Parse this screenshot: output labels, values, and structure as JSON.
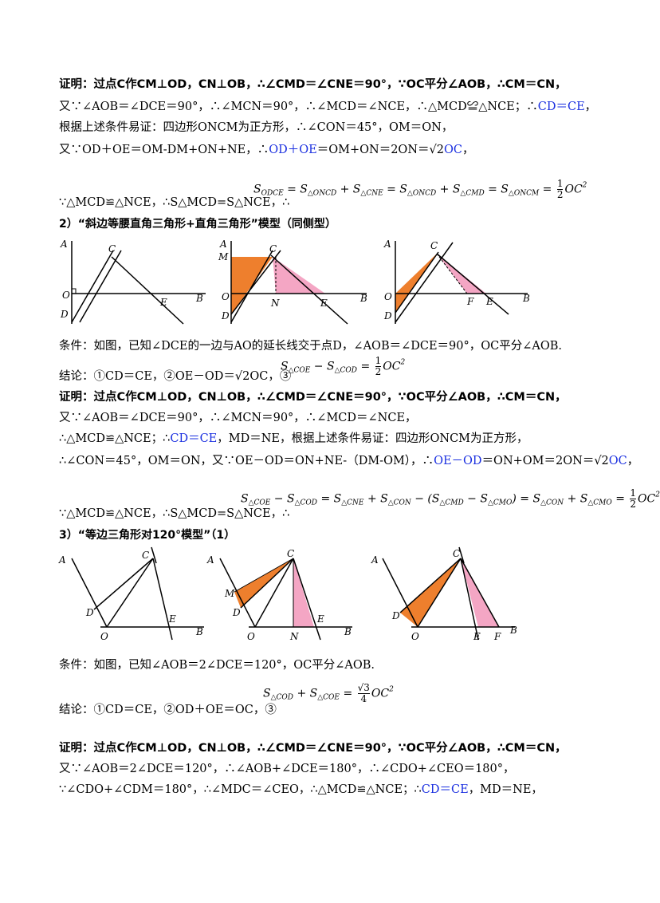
{
  "section1": {
    "proof_line1": "证明：过点C作CM⊥OD，CN⊥OB，∴∠CMD＝∠CNE＝90°，∵OC平分∠AOB，∴CM＝CN，",
    "proof_line2a": "又∵∠AOB＝∠DCE＝90°，∴∠MCN＝90°，∴∠MCD＝∠NCE，∴△MCD≌△NCE；∴",
    "proof_line2b": "CD＝CE",
    "proof_line2c": "，",
    "proof_line3": "根据上述条件易证：四边形ONCM为正方形，∴∠CON＝45°，OM＝ON，",
    "proof_line4a": "又∵OD＋OE＝OM-DM+ON+NE，∴",
    "proof_line4b": "OD＋OE",
    "proof_line4c": "＝OM+ON＝2ON＝√2",
    "proof_line4d": "OC",
    "proof_line4e": "，",
    "proof_line5": "∵△MCD≌△NCE，∴S△MCD=S△NCE，∴",
    "area_formula": "S_ODCE = S_△ONCD + S_△CNE = S_△ONCD + S_△CMD = S_△ONCM = 1/2 OC²"
  },
  "section2": {
    "header": "2）“斜边等腰直角三角形+直角三角形”模型（同侧型）",
    "condition": "条件：如图，已知∠DCE的一边与AO的延长线交于点D，∠AOB＝∠DCE＝90°，OC平分∠AOB.",
    "conclusion": "结论：①CD＝CE，②OE－OD＝√2OC，③",
    "conclusion_formula": "S△COE − S△COD = 1/2 OC²",
    "proof_line1": "证明：过点C作CM⊥OD，CN⊥OB，∴∠CMD＝∠CNE＝90°，∵OC平分∠AOB，∴CM＝CN，",
    "proof_line2": "又∵∠AOB＝∠DCE＝90°，∴∠MCN＝90°，∴∠MCD＝∠NCE，",
    "proof_line3a": "∴△MCD≌△NCE；∴",
    "proof_line3b": "CD＝CE",
    "proof_line3c": "，MD＝NE，根据上述条件易证：四边形ONCM为正方形，",
    "proof_line4a": "∴∠CON＝45°，OM＝ON，又∵OE－OD＝ON+NE-（DM-OM），∴",
    "proof_line4b": "OE－OD",
    "proof_line4c": "＝ON+OM＝2ON＝√2",
    "proof_line4d": "OC",
    "proof_line4e": "，",
    "proof_line5": "∵△MCD≌△NCE，∴S△MCD=S△NCE，∴",
    "area_formula": "S△COE − S△COD = S△CNE + S△CON − (S△CMD − S△CMO) = S△CON + S△CMO = 1/2 OC²"
  },
  "section3": {
    "header": "3）“等边三角形对120°模型”（1）",
    "condition": "条件：如图，已知∠AOB＝2∠DCE＝120°，OC平分∠AOB.",
    "conclusion": "结论：①CD＝CE，②OD＋OE＝OC，③",
    "conclusion_formula": "S△COD + S△COE = √3/4 OC²",
    "proof_line1": "证明：过点C作CM⊥OD，CN⊥OB，∴∠CMD＝∠CNE＝90°，∵OC平分∠AOB，∴CM＝CN，",
    "proof_line2": "又∵∠AOB＝2∠DCE＝120°，∴∠AOB+∠DCE＝180°，∴∠CDO+∠CEO＝180°，",
    "proof_line3a": "∵∠CDO+∠CDM＝180°，∴∠MDC＝∠CEO，∴△MCD≌△NCE；∴",
    "proof_line3b": "CD＝CE",
    "proof_line3c": "，MD＝NE，"
  },
  "colors": {
    "orange": "#ee7f2d",
    "pink": "#f4a6c4",
    "blue_text": "#1a2fe0"
  }
}
